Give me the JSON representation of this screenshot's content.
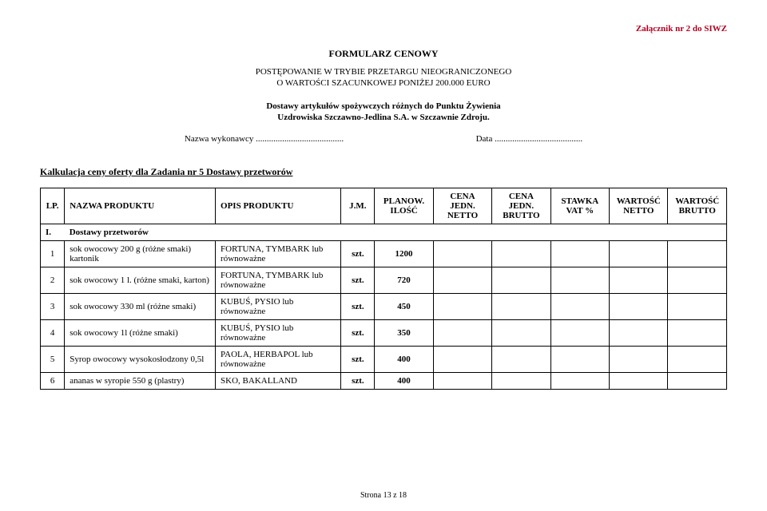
{
  "header": {
    "attachment": "Załącznik nr 2 do SIWZ",
    "title": "FORMULARZ  CENOWY",
    "subtitle1": "POSTĘPOWANIE W TRYBIE PRZETARGU NIEOGRANICZONEGO",
    "subtitle2": "O WARTOŚCI SZACUNKOWEJ PONIŻEJ 200.000 EURO",
    "delivery1": "Dostawy artykułów spożywczych różnych do Punktu Żywienia",
    "delivery2": "Uzdrowiska Szczawno-Jedlina S.A. w Szczawnie Zdroju.",
    "nameLabel": "Nazwa wykonawcy",
    "nameDots": "........................................",
    "dateLabel": "Data",
    "dateDots": "........................................"
  },
  "calcTitle": "Kalkulacja ceny oferty dla Zadania nr 5 Dostawy przetworów",
  "columns": {
    "lp": "LP.",
    "name": "NAZWA  PRODUKTU",
    "desc": "OPIS PRODUKTU",
    "jm": "J.M.",
    "qty": "PLANOW. ILOŚĆ",
    "netUnit": "CENA JEDN. NETTO",
    "grossUnit": "CENA JEDN. BRUTTO",
    "vat": "STAWKA VAT %",
    "netVal": "WARTOŚĆ NETTO",
    "grossVal": "WARTOŚĆ BRUTTO"
  },
  "section": {
    "num": "I.",
    "title": "Dostawy przetworów"
  },
  "rows": [
    {
      "lp": "1",
      "name": "sok owocowy 200 g (różne smaki) kartonik",
      "desc": "FORTUNA, TYMBARK lub równoważne",
      "jm": "szt.",
      "qty": "1200"
    },
    {
      "lp": "2",
      "name": "sok owocowy 1 l. (różne smaki, karton)",
      "desc": "FORTUNA, TYMBARK lub równoważne",
      "jm": "szt.",
      "qty": "720"
    },
    {
      "lp": "3",
      "name": "sok owocowy 330 ml (różne smaki)",
      "desc": "KUBUŚ, PYSIO lub równoważne",
      "jm": "szt.",
      "qty": "450"
    },
    {
      "lp": "4",
      "name": "sok owocowy 1l (różne smaki)",
      "desc": "KUBUŚ, PYSIO lub równoważne",
      "jm": "szt.",
      "qty": "350"
    },
    {
      "lp": "5",
      "name": "Syrop owocowy wysokosłodzony 0,5l",
      "desc": "PAOLA, HERBAPOL lub równoważne",
      "jm": "szt.",
      "qty": "400"
    },
    {
      "lp": "6",
      "name": "ananas w syropie  550 g (plastry)",
      "desc": "SKO, BAKALLAND",
      "jm": "szt.",
      "qty": "400"
    }
  ],
  "footer": "Strona 13 z 18"
}
